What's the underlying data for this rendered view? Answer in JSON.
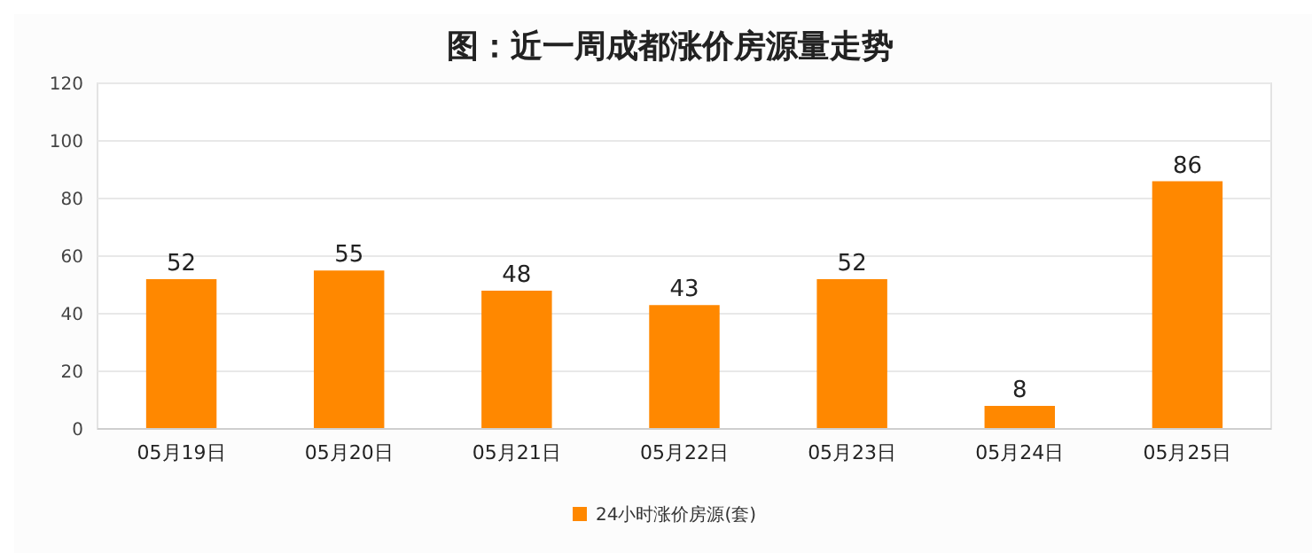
{
  "chart_data": {
    "type": "bar",
    "title": "图：近一周成都涨价房源量走势",
    "categories": [
      "05月19日",
      "05月20日",
      "05月21日",
      "05月22日",
      "05月23日",
      "05月24日",
      "05月25日"
    ],
    "series": [
      {
        "name": "24小时涨价房源(套)",
        "color": "#ff8800",
        "values": [
          52,
          55,
          48,
          43,
          52,
          8,
          86
        ]
      }
    ],
    "ylim": [
      0,
      120
    ],
    "yticks": [
      0,
      20,
      40,
      60,
      80,
      100,
      120
    ],
    "grid": "y",
    "legend": "bottom",
    "data_labels": true
  }
}
